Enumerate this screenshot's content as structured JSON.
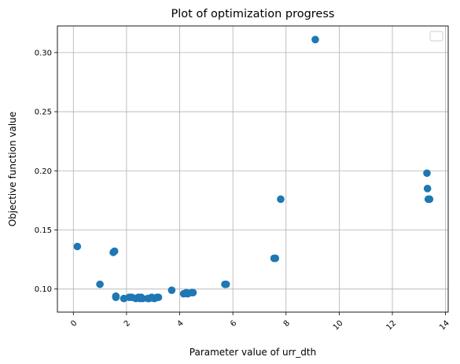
{
  "chart_data": {
    "type": "scatter",
    "title": "Plot of optimization progress",
    "xlabel": "Parameter value of urr_dth",
    "ylabel": "Objective function value",
    "xlim": [
      -0.6,
      14.1
    ],
    "ylim": [
      0.0805,
      0.3225
    ],
    "xticks": [
      0,
      2,
      4,
      6,
      8,
      10,
      12,
      14
    ],
    "xtick_labels": [
      "0",
      "2",
      "4",
      "6",
      "8",
      "10",
      "12",
      "14"
    ],
    "yticks": [
      0.1,
      0.15,
      0.2,
      0.25,
      0.3
    ],
    "ytick_labels": [
      "0.10",
      "0.15",
      "0.20",
      "0.25",
      "0.30"
    ],
    "xtick_rotation": 45,
    "grid": true,
    "legend": "top-right (empty)",
    "marker_color": "#1f77b4",
    "x": [
      0.15,
      1.0,
      1.5,
      1.55,
      1.6,
      1.6,
      1.9,
      2.1,
      2.2,
      2.35,
      2.45,
      2.5,
      2.55,
      2.6,
      2.8,
      2.85,
      2.95,
      3.05,
      3.15,
      3.2,
      3.7,
      4.15,
      4.25,
      4.3,
      4.45,
      4.5,
      5.7,
      5.75,
      7.55,
      7.6,
      7.8,
      9.1,
      13.3,
      13.32,
      13.35,
      13.4
    ],
    "y": [
      0.136,
      0.104,
      0.131,
      0.132,
      0.094,
      0.093,
      0.092,
      0.093,
      0.093,
      0.092,
      0.093,
      0.092,
      0.093,
      0.092,
      0.092,
      0.092,
      0.093,
      0.092,
      0.093,
      0.093,
      0.099,
      0.096,
      0.097,
      0.096,
      0.097,
      0.097,
      0.104,
      0.104,
      0.126,
      0.126,
      0.176,
      0.311,
      0.198,
      0.185,
      0.176,
      0.176
    ]
  }
}
